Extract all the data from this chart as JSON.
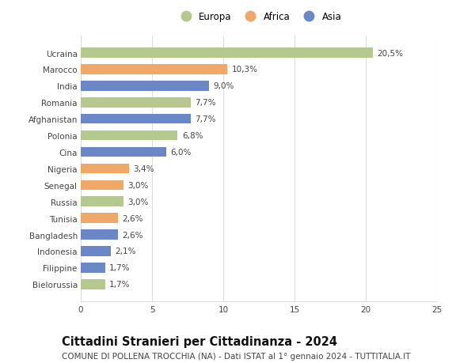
{
  "countries": [
    "Ucraina",
    "Marocco",
    "India",
    "Romania",
    "Afghanistan",
    "Polonia",
    "Cina",
    "Nigeria",
    "Senegal",
    "Russia",
    "Tunisia",
    "Bangladesh",
    "Indonesia",
    "Filippine",
    "Bielorussia"
  ],
  "values": [
    20.5,
    10.3,
    9.0,
    7.7,
    7.7,
    6.8,
    6.0,
    3.4,
    3.0,
    3.0,
    2.6,
    2.6,
    2.1,
    1.7,
    1.7
  ],
  "labels": [
    "20,5%",
    "10,3%",
    "9,0%",
    "7,7%",
    "7,7%",
    "6,8%",
    "6,0%",
    "3,4%",
    "3,0%",
    "3,0%",
    "2,6%",
    "2,6%",
    "2,1%",
    "1,7%",
    "1,7%"
  ],
  "continents": [
    "Europa",
    "Africa",
    "Asia",
    "Europa",
    "Asia",
    "Europa",
    "Asia",
    "Africa",
    "Africa",
    "Europa",
    "Africa",
    "Asia",
    "Asia",
    "Asia",
    "Europa"
  ],
  "colors": {
    "Europa": "#b5c98e",
    "Africa": "#f0a868",
    "Asia": "#6a87c8"
  },
  "xlim": [
    0,
    25
  ],
  "xticks": [
    0,
    5,
    10,
    15,
    20,
    25
  ],
  "title": "Cittadini Stranieri per Cittadinanza - 2024",
  "subtitle": "COMUNE DI POLLENA TROCCHIA (NA) - Dati ISTAT al 1° gennaio 2024 - TUTTITALIA.IT",
  "background_color": "#ffffff",
  "grid_color": "#dddddd",
  "bar_height": 0.6,
  "title_fontsize": 10.5,
  "subtitle_fontsize": 7.5,
  "label_fontsize": 7.5,
  "tick_fontsize": 7.5,
  "legend_fontsize": 8.5
}
